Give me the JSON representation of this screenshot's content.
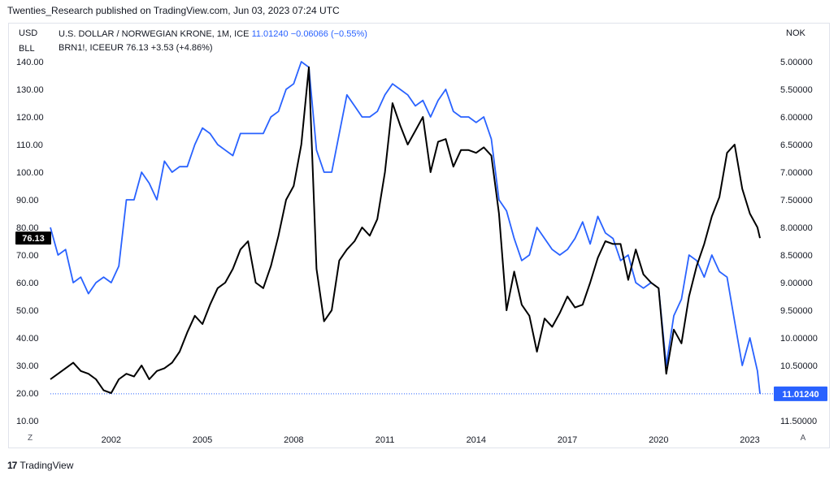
{
  "attribution": "Twenties_Research published on TradingView.com, Jun 03, 2023 07:24 UTC",
  "footer": {
    "logo_text": "TradingView",
    "logo_mark": "17"
  },
  "corner": {
    "left_label": "Z",
    "right_label": "A"
  },
  "chart_data": {
    "type": "line",
    "left_axis": {
      "unit_label_1": "USD",
      "unit_label_2": "BLL",
      "ticks": [
        "140.00",
        "130.00",
        "120.00",
        "110.00",
        "100.00",
        "90.00",
        "80.00",
        "70.00",
        "60.00",
        "50.00",
        "40.00",
        "30.00",
        "20.00",
        "10.00"
      ],
      "range": [
        10,
        140
      ],
      "current_value_label": "76.13"
    },
    "right_axis": {
      "unit_label": "NOK",
      "inverted": true,
      "ticks": [
        "5.00000",
        "5.50000",
        "6.00000",
        "6.50000",
        "7.00000",
        "7.50000",
        "8.00000",
        "8.50000",
        "9.00000",
        "9.50000",
        "10.00000",
        "10.50000",
        "11.00000",
        "11.50000"
      ],
      "range": [
        5.0,
        11.5
      ],
      "current_value_label": "11.01240"
    },
    "x_axis": {
      "ticks": [
        "2002",
        "2005",
        "2008",
        "2011",
        "2014",
        "2017",
        "2020",
        "2023"
      ]
    },
    "series": [
      {
        "name": "U.S. DOLLAR / NORWEGIAN KRONE, 1M, ICE",
        "legend_value": "11.01240",
        "legend_change": "−0.06066 (−0.55%)",
        "color": "#2962ff",
        "axis": "right",
        "points": [
          [
            "2000-01",
            8.0
          ],
          [
            "2000-04",
            8.5
          ],
          [
            "2000-07",
            8.4
          ],
          [
            "2000-10",
            9.0
          ],
          [
            "2001-01",
            8.9
          ],
          [
            "2001-04",
            9.2
          ],
          [
            "2001-07",
            9.0
          ],
          [
            "2001-10",
            8.9
          ],
          [
            "2002-01",
            9.0
          ],
          [
            "2002-04",
            8.7
          ],
          [
            "2002-07",
            7.5
          ],
          [
            "2002-10",
            7.5
          ],
          [
            "2003-01",
            7.0
          ],
          [
            "2003-04",
            7.2
          ],
          [
            "2003-07",
            7.5
          ],
          [
            "2003-10",
            6.8
          ],
          [
            "2004-01",
            7.0
          ],
          [
            "2004-04",
            6.9
          ],
          [
            "2004-07",
            6.9
          ],
          [
            "2004-10",
            6.5
          ],
          [
            "2005-01",
            6.2
          ],
          [
            "2005-04",
            6.3
          ],
          [
            "2005-07",
            6.5
          ],
          [
            "2005-10",
            6.6
          ],
          [
            "2006-01",
            6.7
          ],
          [
            "2006-04",
            6.3
          ],
          [
            "2006-07",
            6.3
          ],
          [
            "2006-10",
            6.3
          ],
          [
            "2007-01",
            6.3
          ],
          [
            "2007-04",
            6.0
          ],
          [
            "2007-07",
            5.9
          ],
          [
            "2007-10",
            5.5
          ],
          [
            "2008-01",
            5.4
          ],
          [
            "2008-04",
            5.0
          ],
          [
            "2008-07",
            5.1
          ],
          [
            "2008-10",
            6.6
          ],
          [
            "2009-01",
            7.0
          ],
          [
            "2009-04",
            7.0
          ],
          [
            "2009-07",
            6.3
          ],
          [
            "2009-10",
            5.6
          ],
          [
            "2010-01",
            5.8
          ],
          [
            "2010-04",
            6.0
          ],
          [
            "2010-07",
            6.0
          ],
          [
            "2010-10",
            5.9
          ],
          [
            "2011-01",
            5.6
          ],
          [
            "2011-04",
            5.4
          ],
          [
            "2011-07",
            5.5
          ],
          [
            "2011-10",
            5.6
          ],
          [
            "2012-01",
            5.8
          ],
          [
            "2012-04",
            5.7
          ],
          [
            "2012-07",
            6.0
          ],
          [
            "2012-10",
            5.7
          ],
          [
            "2013-01",
            5.5
          ],
          [
            "2013-04",
            5.9
          ],
          [
            "2013-07",
            6.0
          ],
          [
            "2013-10",
            6.0
          ],
          [
            "2014-01",
            6.1
          ],
          [
            "2014-04",
            6.0
          ],
          [
            "2014-07",
            6.4
          ],
          [
            "2014-10",
            7.5
          ],
          [
            "2015-01",
            7.7
          ],
          [
            "2015-04",
            8.2
          ],
          [
            "2015-07",
            8.6
          ],
          [
            "2015-10",
            8.5
          ],
          [
            "2016-01",
            8.0
          ],
          [
            "2016-04",
            8.2
          ],
          [
            "2016-07",
            8.4
          ],
          [
            "2016-10",
            8.5
          ],
          [
            "2017-01",
            8.4
          ],
          [
            "2017-04",
            8.2
          ],
          [
            "2017-07",
            7.9
          ],
          [
            "2017-10",
            8.3
          ],
          [
            "2018-01",
            7.8
          ],
          [
            "2018-04",
            8.1
          ],
          [
            "2018-07",
            8.2
          ],
          [
            "2018-10",
            8.6
          ],
          [
            "2019-01",
            8.5
          ],
          [
            "2019-04",
            9.0
          ],
          [
            "2019-07",
            9.1
          ],
          [
            "2019-10",
            9.0
          ],
          [
            "2020-01",
            9.1
          ],
          [
            "2020-04",
            10.5
          ],
          [
            "2020-07",
            9.6
          ],
          [
            "2020-10",
            9.3
          ],
          [
            "2021-01",
            8.5
          ],
          [
            "2021-04",
            8.6
          ],
          [
            "2021-07",
            8.9
          ],
          [
            "2021-10",
            8.5
          ],
          [
            "2022-01",
            8.8
          ],
          [
            "2022-04",
            8.9
          ],
          [
            "2022-07",
            9.7
          ],
          [
            "2022-10",
            10.5
          ],
          [
            "2023-01",
            10.0
          ],
          [
            "2023-04",
            10.6
          ],
          [
            "2023-05",
            11.0124
          ]
        ]
      },
      {
        "name": "BRN1!, ICEEUR",
        "legend_value": "76.13",
        "legend_change": "+3.53 (+4.86%)",
        "color": "#000000",
        "axis": "left",
        "points": [
          [
            "2000-01",
            25
          ],
          [
            "2000-04",
            27
          ],
          [
            "2000-07",
            29
          ],
          [
            "2000-10",
            31
          ],
          [
            "2001-01",
            28
          ],
          [
            "2001-04",
            27
          ],
          [
            "2001-07",
            25
          ],
          [
            "2001-10",
            21
          ],
          [
            "2002-01",
            20
          ],
          [
            "2002-04",
            25
          ],
          [
            "2002-07",
            27
          ],
          [
            "2002-10",
            26
          ],
          [
            "2003-01",
            30
          ],
          [
            "2003-04",
            25
          ],
          [
            "2003-07",
            28
          ],
          [
            "2003-10",
            29
          ],
          [
            "2004-01",
            31
          ],
          [
            "2004-04",
            35
          ],
          [
            "2004-07",
            42
          ],
          [
            "2004-10",
            48
          ],
          [
            "2005-01",
            45
          ],
          [
            "2005-04",
            52
          ],
          [
            "2005-07",
            58
          ],
          [
            "2005-10",
            60
          ],
          [
            "2006-01",
            65
          ],
          [
            "2006-04",
            72
          ],
          [
            "2006-07",
            75
          ],
          [
            "2006-10",
            60
          ],
          [
            "2007-01",
            58
          ],
          [
            "2007-04",
            66
          ],
          [
            "2007-07",
            77
          ],
          [
            "2007-10",
            90
          ],
          [
            "2008-01",
            95
          ],
          [
            "2008-04",
            110
          ],
          [
            "2008-07",
            138
          ],
          [
            "2008-10",
            65
          ],
          [
            "2009-01",
            46
          ],
          [
            "2009-04",
            50
          ],
          [
            "2009-07",
            68
          ],
          [
            "2009-10",
            72
          ],
          [
            "2010-01",
            75
          ],
          [
            "2010-04",
            80
          ],
          [
            "2010-07",
            77
          ],
          [
            "2010-10",
            83
          ],
          [
            "2011-01",
            100
          ],
          [
            "2011-04",
            125
          ],
          [
            "2011-07",
            117
          ],
          [
            "2011-10",
            110
          ],
          [
            "2012-01",
            115
          ],
          [
            "2012-04",
            120
          ],
          [
            "2012-07",
            100
          ],
          [
            "2012-10",
            111
          ],
          [
            "2013-01",
            112
          ],
          [
            "2013-04",
            102
          ],
          [
            "2013-07",
            108
          ],
          [
            "2013-10",
            108
          ],
          [
            "2014-01",
            107
          ],
          [
            "2014-04",
            109
          ],
          [
            "2014-07",
            106
          ],
          [
            "2014-10",
            85
          ],
          [
            "2015-01",
            50
          ],
          [
            "2015-04",
            64
          ],
          [
            "2015-07",
            52
          ],
          [
            "2015-10",
            48
          ],
          [
            "2016-01",
            35
          ],
          [
            "2016-04",
            47
          ],
          [
            "2016-07",
            44
          ],
          [
            "2016-10",
            49
          ],
          [
            "2017-01",
            55
          ],
          [
            "2017-04",
            51
          ],
          [
            "2017-07",
            52
          ],
          [
            "2017-10",
            60
          ],
          [
            "2018-01",
            69
          ],
          [
            "2018-04",
            75
          ],
          [
            "2018-07",
            74
          ],
          [
            "2018-10",
            74
          ],
          [
            "2019-01",
            61
          ],
          [
            "2019-04",
            72
          ],
          [
            "2019-07",
            63
          ],
          [
            "2019-10",
            60
          ],
          [
            "2020-01",
            58
          ],
          [
            "2020-04",
            27
          ],
          [
            "2020-07",
            43
          ],
          [
            "2020-10",
            38
          ],
          [
            "2021-01",
            55
          ],
          [
            "2021-04",
            66
          ],
          [
            "2021-07",
            74
          ],
          [
            "2021-10",
            84
          ],
          [
            "2022-01",
            91
          ],
          [
            "2022-04",
            107
          ],
          [
            "2022-07",
            110
          ],
          [
            "2022-10",
            94
          ],
          [
            "2023-01",
            85
          ],
          [
            "2023-04",
            80
          ],
          [
            "2023-05",
            76.13
          ]
        ]
      }
    ]
  }
}
